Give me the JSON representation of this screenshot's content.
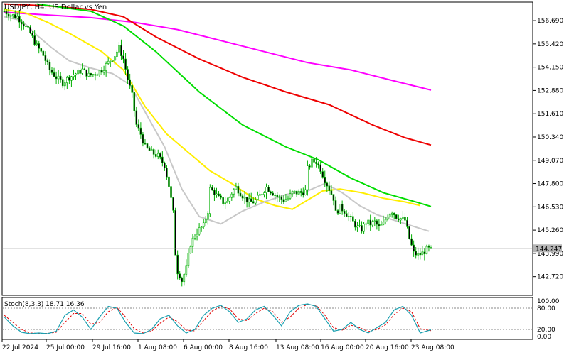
{
  "chart_data": {
    "type": "candlestick",
    "symbol": "USDJPY, H4:  US Dollar vs Yen",
    "price_axis": {
      "ticks": [
        156.69,
        155.42,
        154.15,
        152.88,
        151.61,
        150.34,
        149.07,
        147.8,
        146.53,
        145.26,
        143.99,
        142.72
      ],
      "tick_labels": [
        "156.690",
        "155.420",
        "154.150",
        "152.880",
        "151.610",
        "150.340",
        "149.070",
        "147.800",
        "146.530",
        "145.260",
        "143.990",
        "142.720"
      ],
      "range": [
        141.7,
        157.7
      ]
    },
    "current_price": {
      "value": 144.247,
      "label": "144.247"
    },
    "x_axis_labels": [
      "22 Jul 2024",
      "25 Jul 00:00",
      "29 Jul 16:00",
      "1 Aug 08:00",
      "6 Aug 00:00",
      "8 Aug 16:00",
      "13 Aug 08:00",
      "16 Aug 00:00",
      "20 Aug 16:00",
      "23 Aug 08:00"
    ],
    "close_path": [
      [
        0,
        157.2
      ],
      [
        3,
        157.0
      ],
      [
        6,
        156.9
      ],
      [
        9,
        156.5
      ],
      [
        12,
        156.0
      ],
      [
        15,
        155.3
      ],
      [
        18,
        154.8
      ],
      [
        21,
        154.0
      ],
      [
        24,
        153.6
      ],
      [
        27,
        153.3
      ],
      [
        30,
        153.6
      ],
      [
        33,
        153.8
      ],
      [
        36,
        154.0
      ],
      [
        39,
        153.7
      ],
      [
        42,
        153.8
      ],
      [
        45,
        154.0
      ],
      [
        48,
        154.4
      ],
      [
        51,
        154.8
      ],
      [
        53,
        155.2
      ],
      [
        55,
        154.6
      ],
      [
        57,
        153.5
      ],
      [
        59,
        152.6
      ],
      [
        61,
        151.0
      ],
      [
        63,
        150.5
      ],
      [
        65,
        149.8
      ],
      [
        68,
        149.5
      ],
      [
        71,
        149.3
      ],
      [
        74,
        148.8
      ],
      [
        76,
        147.7
      ],
      [
        78,
        146.2
      ],
      [
        79,
        144.0
      ],
      [
        80,
        143.0
      ],
      [
        81,
        142.8
      ],
      [
        82,
        142.5
      ],
      [
        84,
        143.2
      ],
      [
        86,
        144.5
      ],
      [
        88,
        145.0
      ],
      [
        90,
        145.3
      ],
      [
        92,
        145.5
      ],
      [
        94,
        146.3
      ],
      [
        95,
        147.5
      ],
      [
        97,
        147.3
      ],
      [
        99,
        147.0
      ],
      [
        101,
        146.8
      ],
      [
        103,
        146.8
      ],
      [
        105,
        147.3
      ],
      [
        107,
        147.6
      ],
      [
        109,
        147.3
      ],
      [
        111,
        147.0
      ],
      [
        113,
        146.8
      ],
      [
        115,
        146.8
      ],
      [
        117,
        147.0
      ],
      [
        119,
        147.3
      ],
      [
        121,
        147.6
      ],
      [
        123,
        147.4
      ],
      [
        125,
        147.2
      ],
      [
        127,
        147.0
      ],
      [
        129,
        146.9
      ],
      [
        131,
        147.0
      ],
      [
        133,
        147.3
      ],
      [
        135,
        147.3
      ],
      [
        137,
        147.3
      ],
      [
        139,
        147.4
      ],
      [
        140,
        148.6
      ],
      [
        142,
        149.0
      ],
      [
        144,
        149.0
      ],
      [
        146,
        148.6
      ],
      [
        148,
        148.0
      ],
      [
        150,
        147.5
      ],
      [
        152,
        147.0
      ],
      [
        153,
        146.2
      ],
      [
        155,
        146.5
      ],
      [
        157,
        146.3
      ],
      [
        159,
        146.0
      ],
      [
        161,
        145.7
      ],
      [
        163,
        145.4
      ],
      [
        165,
        145.3
      ],
      [
        167,
        145.7
      ],
      [
        169,
        145.6
      ],
      [
        171,
        145.7
      ],
      [
        173,
        145.4
      ],
      [
        175,
        145.6
      ],
      [
        177,
        146.1
      ],
      [
        179,
        146.3
      ],
      [
        181,
        146.0
      ],
      [
        183,
        145.9
      ],
      [
        185,
        145.8
      ],
      [
        187,
        144.8
      ],
      [
        189,
        144.0
      ],
      [
        191,
        143.9
      ],
      [
        193,
        144.0
      ],
      [
        195,
        144.2
      ],
      [
        197,
        144.247
      ]
    ],
    "moving_averages": [
      {
        "color": "#ff00ff",
        "points": [
          [
            0,
            157.15
          ],
          [
            20,
            157.0
          ],
          [
            40,
            156.85
          ],
          [
            60,
            156.6
          ],
          [
            80,
            156.2
          ],
          [
            100,
            155.6
          ],
          [
            120,
            155.0
          ],
          [
            140,
            154.4
          ],
          [
            160,
            154.0
          ],
          [
            180,
            153.4
          ],
          [
            197,
            152.9
          ]
        ]
      },
      {
        "color": "#ee0000",
        "points": [
          [
            0,
            157.6
          ],
          [
            20,
            157.5
          ],
          [
            40,
            157.3
          ],
          [
            55,
            156.9
          ],
          [
            70,
            155.8
          ],
          [
            90,
            154.6
          ],
          [
            110,
            153.6
          ],
          [
            130,
            152.8
          ],
          [
            150,
            152.1
          ],
          [
            170,
            151.0
          ],
          [
            185,
            150.3
          ],
          [
            197,
            149.9
          ]
        ]
      },
      {
        "color": "#00dd00",
        "points": [
          [
            15,
            157.6
          ],
          [
            40,
            157.2
          ],
          [
            55,
            156.4
          ],
          [
            70,
            155.0
          ],
          [
            90,
            152.8
          ],
          [
            110,
            151.0
          ],
          [
            130,
            149.8
          ],
          [
            145,
            149.1
          ],
          [
            160,
            148.1
          ],
          [
            175,
            147.3
          ],
          [
            190,
            146.8
          ],
          [
            197,
            146.55
          ]
        ]
      },
      {
        "color": "#ffee00",
        "points": [
          [
            0,
            157.3
          ],
          [
            10,
            157.1
          ],
          [
            20,
            156.6
          ],
          [
            30,
            156.0
          ],
          [
            45,
            155.0
          ],
          [
            55,
            154.0
          ],
          [
            65,
            152.0
          ],
          [
            75,
            150.5
          ],
          [
            85,
            149.5
          ],
          [
            95,
            148.5
          ],
          [
            105,
            147.8
          ],
          [
            115,
            147.0
          ],
          [
            125,
            146.6
          ],
          [
            133,
            146.4
          ],
          [
            140,
            146.9
          ],
          [
            147,
            147.4
          ],
          [
            155,
            147.5
          ],
          [
            165,
            147.3
          ],
          [
            175,
            147.0
          ],
          [
            185,
            146.8
          ],
          [
            192,
            146.6
          ]
        ]
      },
      {
        "color": "#c8c8c8",
        "points": [
          [
            0,
            156.9
          ],
          [
            8,
            156.7
          ],
          [
            15,
            155.9
          ],
          [
            22,
            155.2
          ],
          [
            30,
            154.5
          ],
          [
            40,
            154.1
          ],
          [
            50,
            153.8
          ],
          [
            58,
            153.2
          ],
          [
            66,
            151.5
          ],
          [
            74,
            149.8
          ],
          [
            82,
            147.5
          ],
          [
            90,
            146.0
          ],
          [
            100,
            145.6
          ],
          [
            110,
            146.3
          ],
          [
            120,
            146.8
          ],
          [
            130,
            147.2
          ],
          [
            140,
            147.4
          ],
          [
            148,
            147.8
          ],
          [
            156,
            147.3
          ],
          [
            164,
            146.6
          ],
          [
            172,
            146.1
          ],
          [
            180,
            145.8
          ],
          [
            188,
            145.5
          ],
          [
            196,
            145.2
          ]
        ]
      }
    ],
    "stochastic": {
      "label": "Stoch(8,3,3) 18.71 16.36",
      "levels": {
        "upper": 80,
        "lower": 20
      },
      "axis_labels": [
        "100.00",
        "80.00",
        "20.00",
        "0.00"
      ],
      "main": [
        [
          0,
          55
        ],
        [
          4,
          30
        ],
        [
          8,
          12
        ],
        [
          12,
          8
        ],
        [
          16,
          10
        ],
        [
          20,
          8
        ],
        [
          24,
          15
        ],
        [
          28,
          60
        ],
        [
          32,
          75
        ],
        [
          36,
          55
        ],
        [
          40,
          20
        ],
        [
          44,
          55
        ],
        [
          48,
          85
        ],
        [
          52,
          80
        ],
        [
          56,
          40
        ],
        [
          60,
          10
        ],
        [
          64,
          8
        ],
        [
          68,
          20
        ],
        [
          72,
          50
        ],
        [
          76,
          60
        ],
        [
          80,
          30
        ],
        [
          84,
          10
        ],
        [
          88,
          20
        ],
        [
          92,
          60
        ],
        [
          96,
          80
        ],
        [
          100,
          88
        ],
        [
          104,
          70
        ],
        [
          108,
          40
        ],
        [
          112,
          50
        ],
        [
          116,
          75
        ],
        [
          120,
          85
        ],
        [
          124,
          60
        ],
        [
          128,
          30
        ],
        [
          132,
          70
        ],
        [
          136,
          88
        ],
        [
          140,
          92
        ],
        [
          144,
          85
        ],
        [
          148,
          50
        ],
        [
          152,
          15
        ],
        [
          156,
          20
        ],
        [
          160,
          40
        ],
        [
          164,
          20
        ],
        [
          168,
          10
        ],
        [
          172,
          25
        ],
        [
          176,
          40
        ],
        [
          180,
          75
        ],
        [
          184,
          85
        ],
        [
          188,
          60
        ],
        [
          192,
          10
        ],
        [
          197,
          18.71
        ]
      ],
      "signal": [
        [
          0,
          60
        ],
        [
          4,
          40
        ],
        [
          8,
          20
        ],
        [
          12,
          10
        ],
        [
          16,
          9
        ],
        [
          20,
          9
        ],
        [
          24,
          12
        ],
        [
          28,
          40
        ],
        [
          32,
          65
        ],
        [
          36,
          65
        ],
        [
          40,
          35
        ],
        [
          44,
          40
        ],
        [
          48,
          70
        ],
        [
          52,
          82
        ],
        [
          56,
          55
        ],
        [
          60,
          22
        ],
        [
          64,
          10
        ],
        [
          68,
          15
        ],
        [
          72,
          38
        ],
        [
          76,
          55
        ],
        [
          80,
          42
        ],
        [
          84,
          18
        ],
        [
          88,
          16
        ],
        [
          92,
          45
        ],
        [
          96,
          72
        ],
        [
          100,
          85
        ],
        [
          104,
          78
        ],
        [
          108,
          50
        ],
        [
          112,
          45
        ],
        [
          116,
          65
        ],
        [
          120,
          80
        ],
        [
          124,
          70
        ],
        [
          128,
          40
        ],
        [
          132,
          55
        ],
        [
          136,
          80
        ],
        [
          140,
          90
        ],
        [
          144,
          88
        ],
        [
          148,
          60
        ],
        [
          152,
          25
        ],
        [
          156,
          18
        ],
        [
          160,
          32
        ],
        [
          164,
          25
        ],
        [
          168,
          14
        ],
        [
          172,
          20
        ],
        [
          176,
          33
        ],
        [
          180,
          62
        ],
        [
          184,
          80
        ],
        [
          188,
          70
        ],
        [
          192,
          22
        ],
        [
          197,
          16.36
        ]
      ]
    }
  }
}
